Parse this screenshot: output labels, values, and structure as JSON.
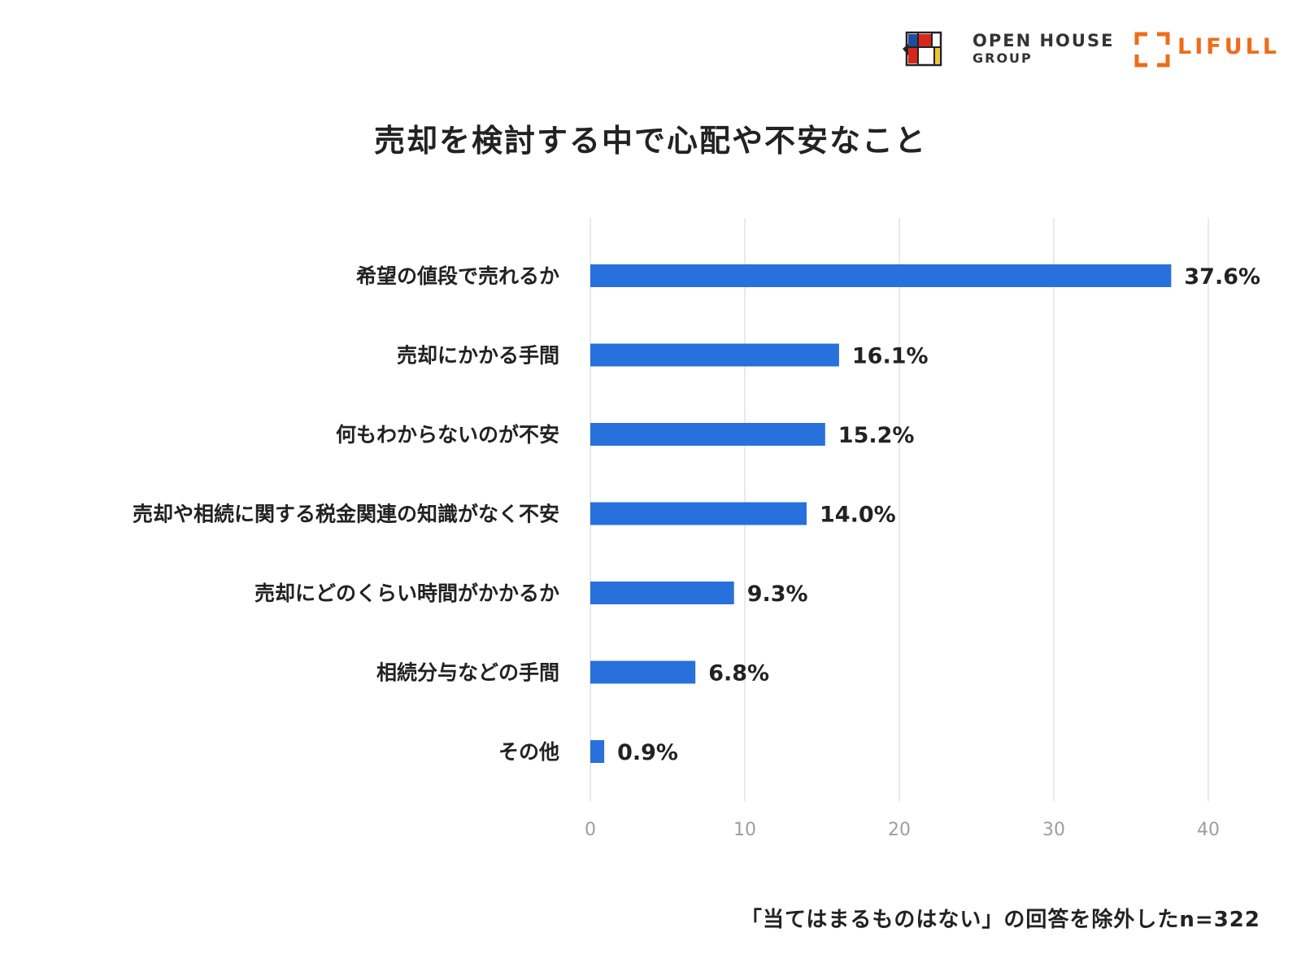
{
  "logos": {
    "openhouse_line1": "OPEN HOUSE",
    "openhouse_line2": "GROUP",
    "lifull": "LIFULL",
    "colors": {
      "openhouse_red": "#D9261C",
      "openhouse_blue": "#1F4E9A",
      "openhouse_yellow": "#F5C518",
      "lifull_orange": "#EF6C19"
    }
  },
  "chart_data": {
    "type": "bar",
    "orientation": "horizontal",
    "title": "売却を検討する中で心配や不安なこと",
    "categories": [
      "希望の値段で売れるか",
      "売却にかかる手間",
      "何もわからないのが不安",
      "売却や相続に関する税金関連の知識がなく不安",
      "売却にどのくらい時間がかかるか",
      "相続分与などの手間",
      "その他"
    ],
    "values": [
      37.6,
      16.1,
      15.2,
      14.0,
      9.3,
      6.8,
      0.9
    ],
    "value_labels": [
      "37.6%",
      "16.1%",
      "15.2%",
      "14.0%",
      "9.3%",
      "6.8%",
      "0.9%"
    ],
    "xlim": [
      0,
      40
    ],
    "x_ticks": [
      0,
      10,
      20,
      30,
      40
    ],
    "grid": true,
    "bar_color": "#2870DB",
    "grid_color": "#E3E3E3"
  },
  "footnote": "「当てはまるものはない」の回答を除外したn=322"
}
